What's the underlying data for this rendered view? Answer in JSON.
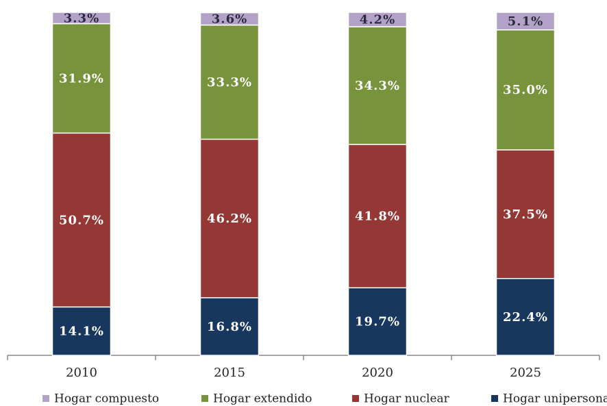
{
  "chart_data": {
    "type": "stacked_bar",
    "categories": [
      "2010",
      "2015",
      "2020",
      "2025"
    ],
    "ylim": [
      0,
      100
    ],
    "legend": "bottom",
    "series": [
      {
        "name": "Hogar compuesto",
        "color": "#b3a2c7",
        "values": [
          3.3,
          3.6,
          4.2,
          5.1
        ],
        "value_labels": [
          "3.3%",
          "3.6%",
          "4.2%",
          "5.1%"
        ]
      },
      {
        "name": "Hogar extendido",
        "color": "#77933c",
        "values": [
          31.9,
          33.3,
          34.3,
          35.0
        ],
        "value_labels": [
          "31.9%",
          "33.3%",
          "34.3%",
          "35.0%"
        ]
      },
      {
        "name": "Hogar nuclear",
        "color": "#953735",
        "values": [
          50.7,
          46.2,
          41.8,
          37.5
        ],
        "value_labels": [
          "50.7%",
          "46.2%",
          "41.8%",
          "37.5%"
        ]
      },
      {
        "name": "Hogar unipersonal",
        "color": "#17375e",
        "values": [
          14.1,
          16.8,
          19.7,
          22.4
        ],
        "value_labels": [
          "14.1%",
          "16.8%",
          "19.7%",
          "22.4%"
        ]
      }
    ]
  }
}
